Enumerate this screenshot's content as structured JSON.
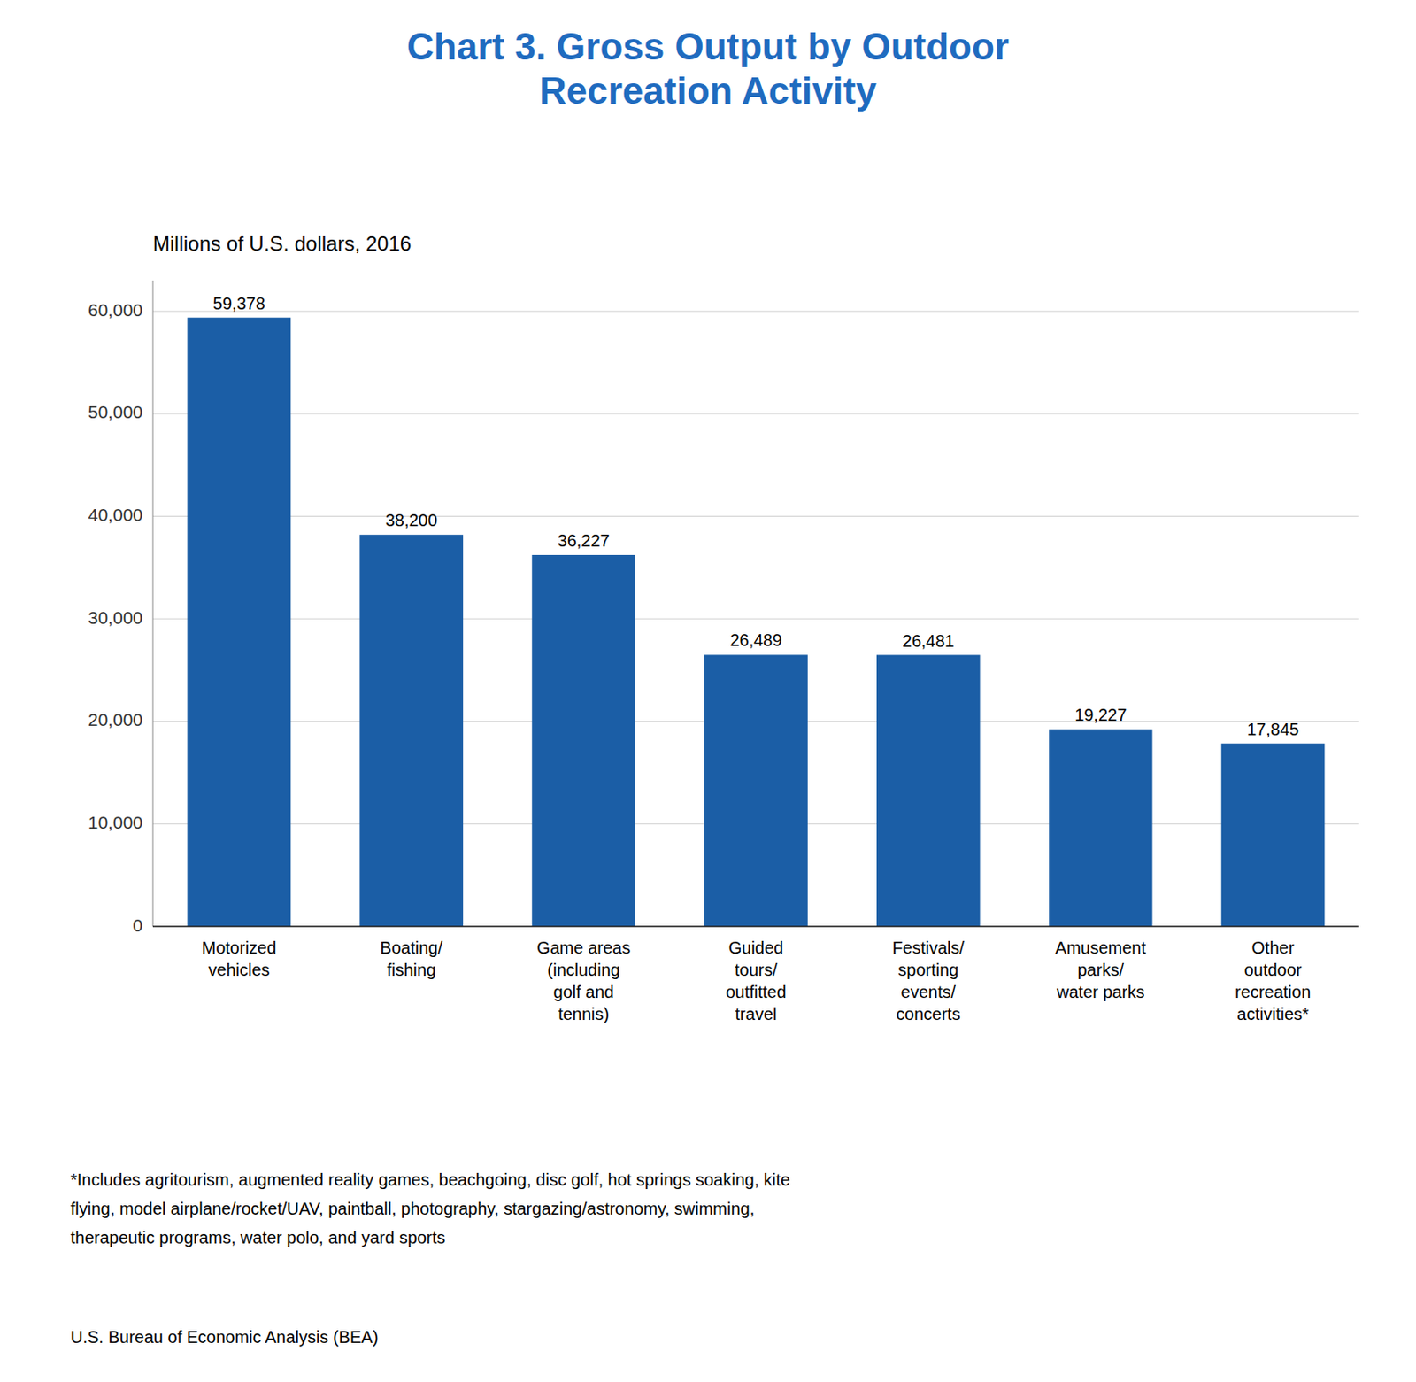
{
  "chart_data": {
    "type": "bar",
    "title": "Chart 3. Gross Output by Outdoor\nRecreation Activity",
    "subtitle": "Millions of U.S. dollars, 2016",
    "categories": [
      "Motorized\nvehicles",
      "Boating/\nfishing",
      "Game areas\n(including\ngolf and\ntennis)",
      "Guided\ntours/\noutfitted\ntravel",
      "Festivals/\nsporting\nevents/\nconcerts",
      "Amusement\nparks/\nwater parks",
      "Other\noutdoor\nrecreation\nactivities*"
    ],
    "values": [
      59378,
      38200,
      36227,
      26489,
      26481,
      19227,
      17845
    ],
    "value_labels": [
      "59,378",
      "38,200",
      "36,227",
      "26,489",
      "26,481",
      "19,227",
      "17,845"
    ],
    "data_labels": true,
    "color": "#1B5EA6",
    "ylim": [
      0,
      63000
    ],
    "yticks": [
      0,
      {
        "value": 10000,
        "label": "10,000"
      },
      {
        "value": 20000,
        "label": "20,000"
      },
      {
        "value": 30000,
        "label": "30,000"
      },
      {
        "value": 40000,
        "label": "40,000"
      },
      {
        "value": 50000,
        "label": "50,000"
      },
      {
        "value": 60000,
        "label": "60,000"
      }
    ],
    "grid": true,
    "footnote": [
      "*Includes agritourism, augmented reality games, beachgoing, disc golf, hot springs soaking, kite",
      "flying, model airplane/rocket/UAV, paintball, photography, stargazing/astronomy, swimming,",
      "therapeutic programs, water polo, and yard sports"
    ],
    "source": "U.S. Bureau of Economic Analysis (BEA)"
  }
}
